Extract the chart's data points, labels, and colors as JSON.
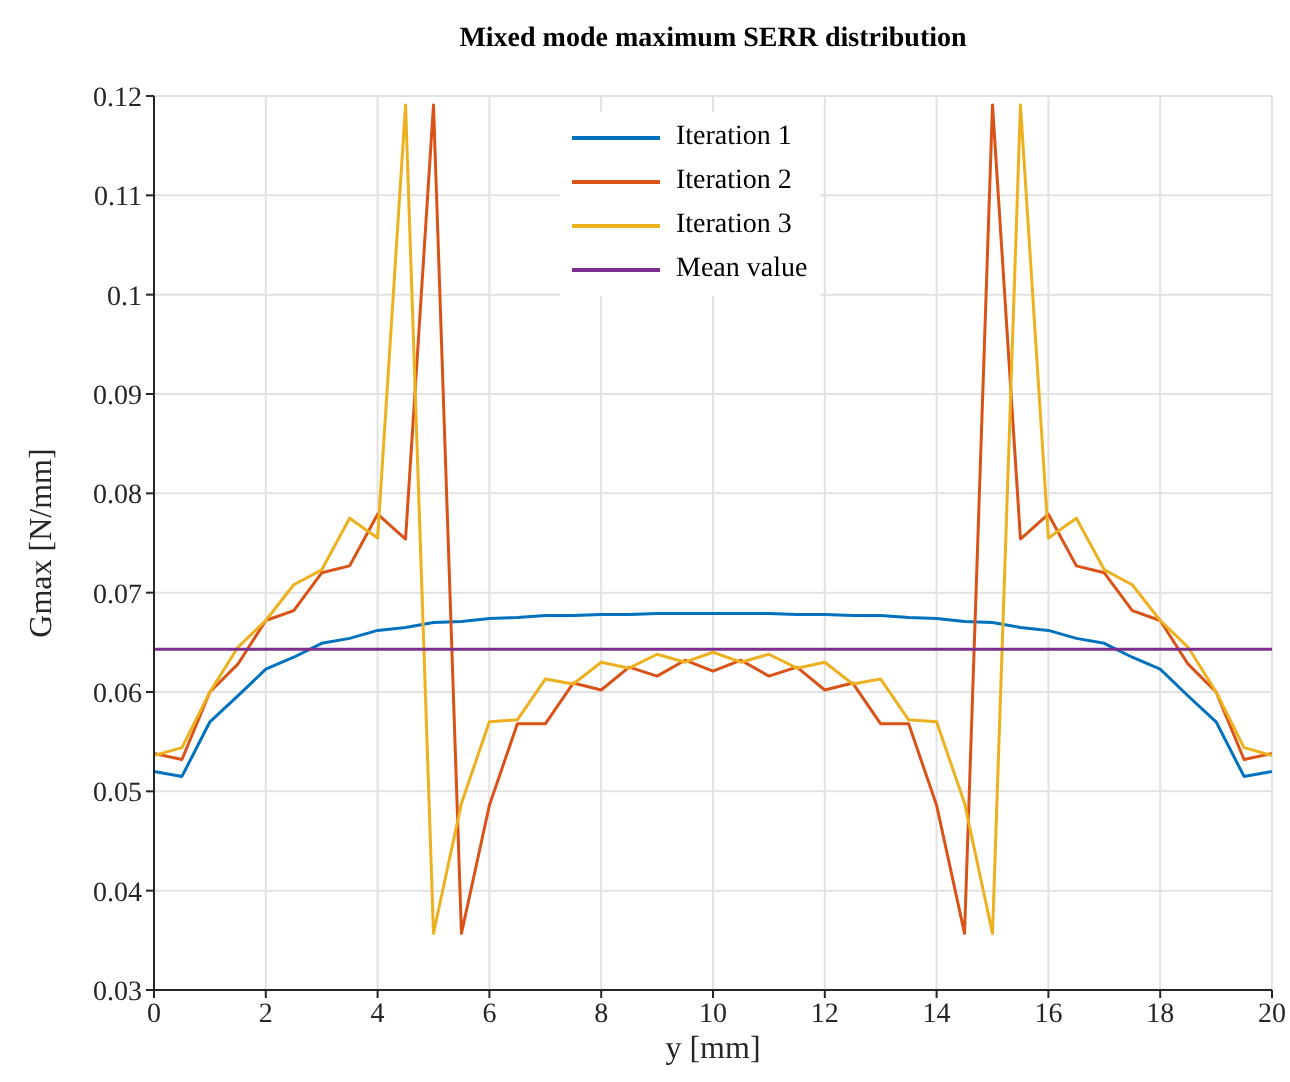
{
  "chart_data": {
    "type": "line",
    "title": "Mixed mode maximum SERR distribution",
    "xlabel": "y [mm]",
    "ylabel": "Gmax [N/mm]",
    "x": [
      0,
      0.5,
      1,
      1.5,
      2,
      2.5,
      3,
      3.5,
      4,
      4.5,
      5,
      5.5,
      6,
      6.5,
      7,
      7.5,
      8,
      8.5,
      9,
      9.5,
      10,
      10.5,
      11,
      11.5,
      12,
      12.5,
      13,
      13.5,
      14,
      14.5,
      15,
      15.5,
      16,
      16.5,
      17,
      17.5,
      18,
      18.5,
      19,
      19.5,
      20
    ],
    "series": [
      {
        "name": "Iteration 1",
        "color": "#0072bd",
        "values": [
          0.052,
          0.0515,
          0.057,
          0.0596,
          0.0623,
          0.0635,
          0.0649,
          0.0654,
          0.0662,
          0.0665,
          0.067,
          0.0671,
          0.0674,
          0.0675,
          0.0677,
          0.0677,
          0.0678,
          0.0678,
          0.0679,
          0.0679,
          0.0679,
          0.0679,
          0.0679,
          0.0678,
          0.0678,
          0.0677,
          0.0677,
          0.0675,
          0.0674,
          0.0671,
          0.067,
          0.0665,
          0.0662,
          0.0654,
          0.0649,
          0.0635,
          0.0623,
          0.0596,
          0.057,
          0.0515,
          0.052
        ]
      },
      {
        "name": "Iteration 2",
        "color": "#d95319",
        "values": [
          0.0538,
          0.0532,
          0.06,
          0.0628,
          0.0672,
          0.0682,
          0.072,
          0.0727,
          0.0779,
          0.0754,
          0.1191,
          0.0357,
          0.0486,
          0.0568,
          0.0568,
          0.0609,
          0.0602,
          0.0625,
          0.0616,
          0.0632,
          0.0621,
          0.0632,
          0.0616,
          0.0625,
          0.0602,
          0.0609,
          0.0568,
          0.0568,
          0.0486,
          0.0357,
          0.1191,
          0.0754,
          0.0779,
          0.0727,
          0.072,
          0.0682,
          0.0672,
          0.0628,
          0.06,
          0.0532,
          0.0538
        ]
      },
      {
        "name": "Iteration 3",
        "color": "#edb120",
        "values": [
          0.0536,
          0.0544,
          0.06,
          0.0645,
          0.0672,
          0.0708,
          0.0723,
          0.0775,
          0.0755,
          0.1191,
          0.0357,
          0.0488,
          0.057,
          0.0572,
          0.0613,
          0.0608,
          0.063,
          0.0624,
          0.0638,
          0.063,
          0.064,
          0.063,
          0.0638,
          0.0624,
          0.063,
          0.0608,
          0.0613,
          0.0572,
          0.057,
          0.0488,
          0.0357,
          0.1191,
          0.0755,
          0.0775,
          0.0723,
          0.0708,
          0.0672,
          0.0645,
          0.06,
          0.0544,
          0.0536
        ]
      },
      {
        "name": "Mean value",
        "color": "#7e2f8e",
        "x": [
          0,
          20
        ],
        "values": [
          0.0643,
          0.0643
        ]
      }
    ],
    "xlim": [
      0,
      20
    ],
    "xticks": [
      0,
      2,
      4,
      6,
      8,
      10,
      12,
      14,
      16,
      18,
      20
    ],
    "ylim": [
      0.03,
      0.12
    ],
    "yticks": [
      0.03,
      0.04,
      0.05,
      0.06,
      0.07,
      0.08,
      0.09,
      0.1,
      0.11,
      0.12
    ],
    "grid": true,
    "legend": "top",
    "marker": "none",
    "line_style": "solid"
  }
}
